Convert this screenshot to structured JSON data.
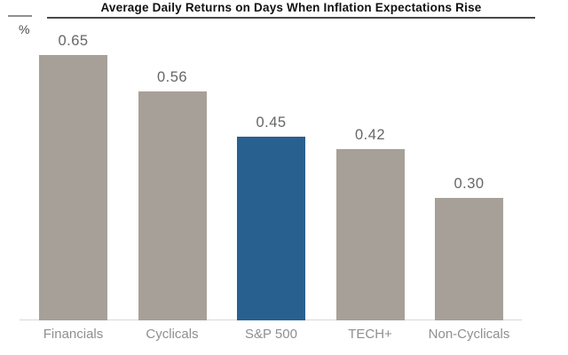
{
  "header": {
    "title": "Average Daily Returns on Days When Inflation Expectations Rise",
    "y_axis_unit": "%"
  },
  "colors": {
    "bar_default": "#a7a099",
    "bar_highlight": "#28618f",
    "value_label": "#666666",
    "category_label": "#8f8f8f",
    "baseline": "#d9d9d9"
  },
  "chart_data": {
    "type": "bar",
    "title": "Average Daily Returns on Days When Inflation Expectations Rise",
    "ylabel": "%",
    "xlabel": "",
    "categories": [
      "Financials",
      "Cyclicals",
      "S&P 500",
      "TECH+",
      "Non-Cyclicals"
    ],
    "values": [
      0.65,
      0.56,
      0.45,
      0.42,
      0.3
    ],
    "value_labels": [
      "0.65",
      "0.56",
      "0.45",
      "0.42",
      "0.30"
    ],
    "highlight_index": 2,
    "highlight_category": "S&P 500",
    "ylim": [
      0,
      0.72
    ],
    "grid": false,
    "legend": null
  }
}
